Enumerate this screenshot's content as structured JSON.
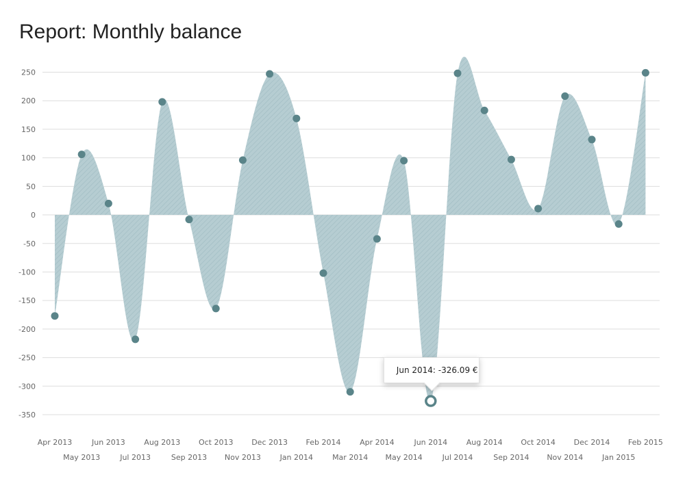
{
  "title": "Report: Monthly balance",
  "colors": {
    "area_fill": "#b6cdd2",
    "hatch": "#a4bfc5",
    "marker": "#5a8489",
    "grid": "#dddddd",
    "axis_text": "#666666"
  },
  "chart_data": {
    "type": "area",
    "title": "Report: Monthly balance",
    "xlabel": "",
    "ylabel": "",
    "ylim": [
      -350,
      250
    ],
    "yticks": [
      250,
      200,
      150,
      100,
      50,
      0,
      -50,
      -100,
      -150,
      -200,
      -250,
      -300,
      -350
    ],
    "grid": true,
    "legend": "none",
    "categories": [
      "Apr 2013",
      "May 2013",
      "Jun 2013",
      "Jul 2013",
      "Aug 2013",
      "Sep 2013",
      "Oct 2013",
      "Nov 2013",
      "Dec 2013",
      "Jan 2014",
      "Feb 2014",
      "Mar 2014",
      "Apr 2014",
      "May 2014",
      "Jun 2014",
      "Jul 2014",
      "Aug 2014",
      "Sep 2014",
      "Oct 2014",
      "Nov 2014",
      "Dec 2014",
      "Jan 2015",
      "Feb 2015"
    ],
    "series": [
      {
        "values": [
          -177,
          106,
          20,
          -218,
          198,
          -8,
          -164,
          96,
          247,
          169,
          -102,
          -310,
          -42,
          95,
          -326.09,
          248,
          183,
          97,
          11,
          208,
          132,
          -16,
          249
        ]
      }
    ],
    "tooltip": {
      "index": 14,
      "text": "Jun 2014: -326.09 €"
    }
  }
}
